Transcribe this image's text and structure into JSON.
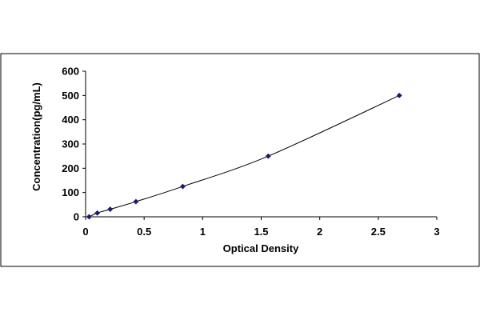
{
  "chart_data": {
    "type": "scatter",
    "title": "",
    "xlabel": "Optical Density",
    "ylabel": "Concentration(pg/mL)",
    "xlim": [
      0,
      3
    ],
    "ylim": [
      0,
      600
    ],
    "xticks": [
      "0",
      "0.5",
      "1",
      "1.5",
      "2",
      "2.5",
      "3"
    ],
    "yticks": [
      "0",
      "100",
      "200",
      "300",
      "400",
      "500",
      "600"
    ],
    "grid": false,
    "legend": "none",
    "series": [
      {
        "x": [
          0.03,
          0.1,
          0.21,
          0.43,
          0.83,
          1.56,
          2.68
        ],
        "y": [
          0,
          15.6,
          31.2,
          62.5,
          125,
          250,
          500
        ]
      }
    ],
    "trendline": true,
    "colors": {
      "marker": "#1a1a6e",
      "line": "#000000",
      "axis": "#000000"
    }
  }
}
